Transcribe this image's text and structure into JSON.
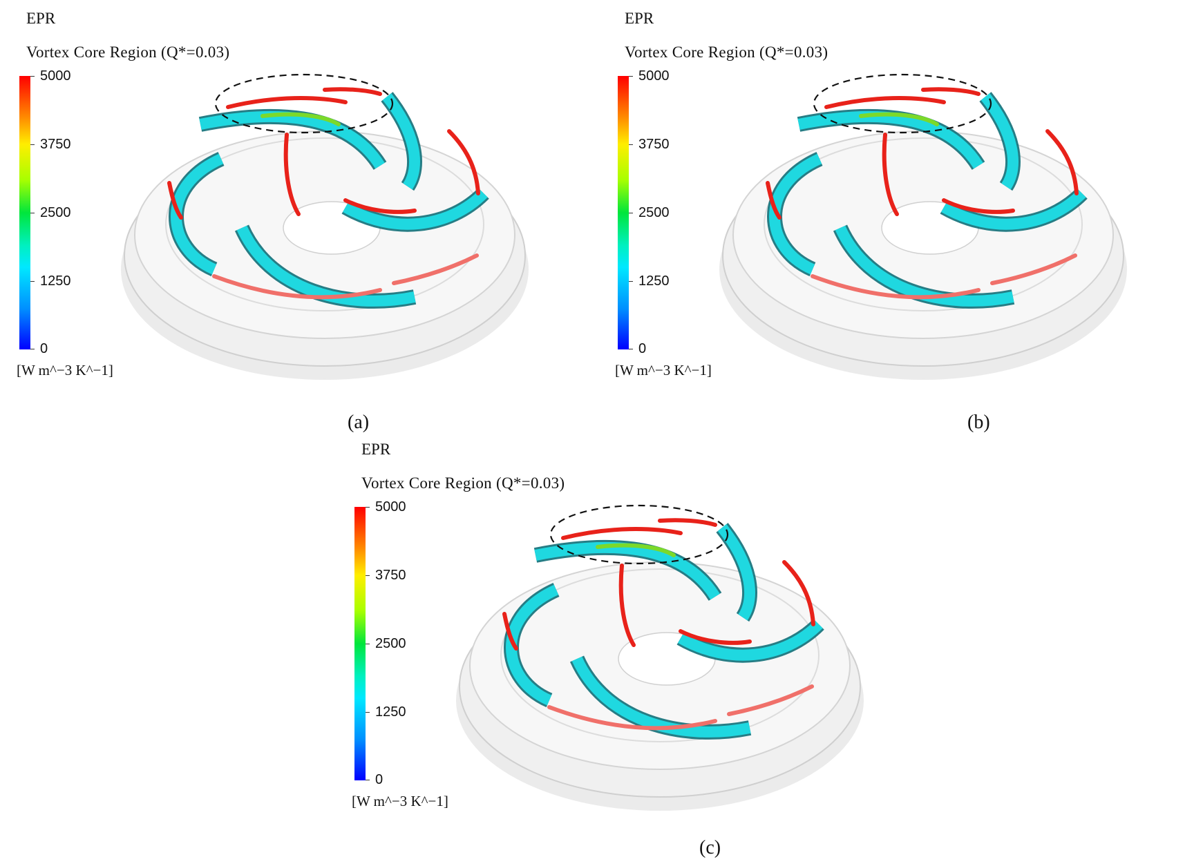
{
  "panels": [
    {
      "id": "a",
      "variable": "EPR",
      "subtitle": "Vortex Core Region (Q*=0.03)",
      "legend_ticks": [
        "5000",
        "3750",
        "2500",
        "1250",
        "0"
      ],
      "units": "[W m^−3 K^−1]",
      "caption": "(a)"
    },
    {
      "id": "b",
      "variable": "EPR",
      "subtitle": "Vortex Core Region (Q*=0.03)",
      "legend_ticks": [
        "5000",
        "3750",
        "2500",
        "1250",
        "0"
      ],
      "units": "[W m^−3 K^−1]",
      "caption": "(b)"
    },
    {
      "id": "c",
      "variable": "EPR",
      "subtitle": "Vortex Core Region (Q*=0.03)",
      "legend_ticks": [
        "5000",
        "3750",
        "2500",
        "1250",
        "0"
      ],
      "units": "[W m^−3 K^−1]",
      "caption": "(c)"
    }
  ],
  "colors": {
    "blade": "#1fd8e0",
    "blade_shadow": "#0e6f78",
    "vortex_high": "#e8221a",
    "vortex_mid": "#7cd92a",
    "casing": "#d9d9d9"
  }
}
